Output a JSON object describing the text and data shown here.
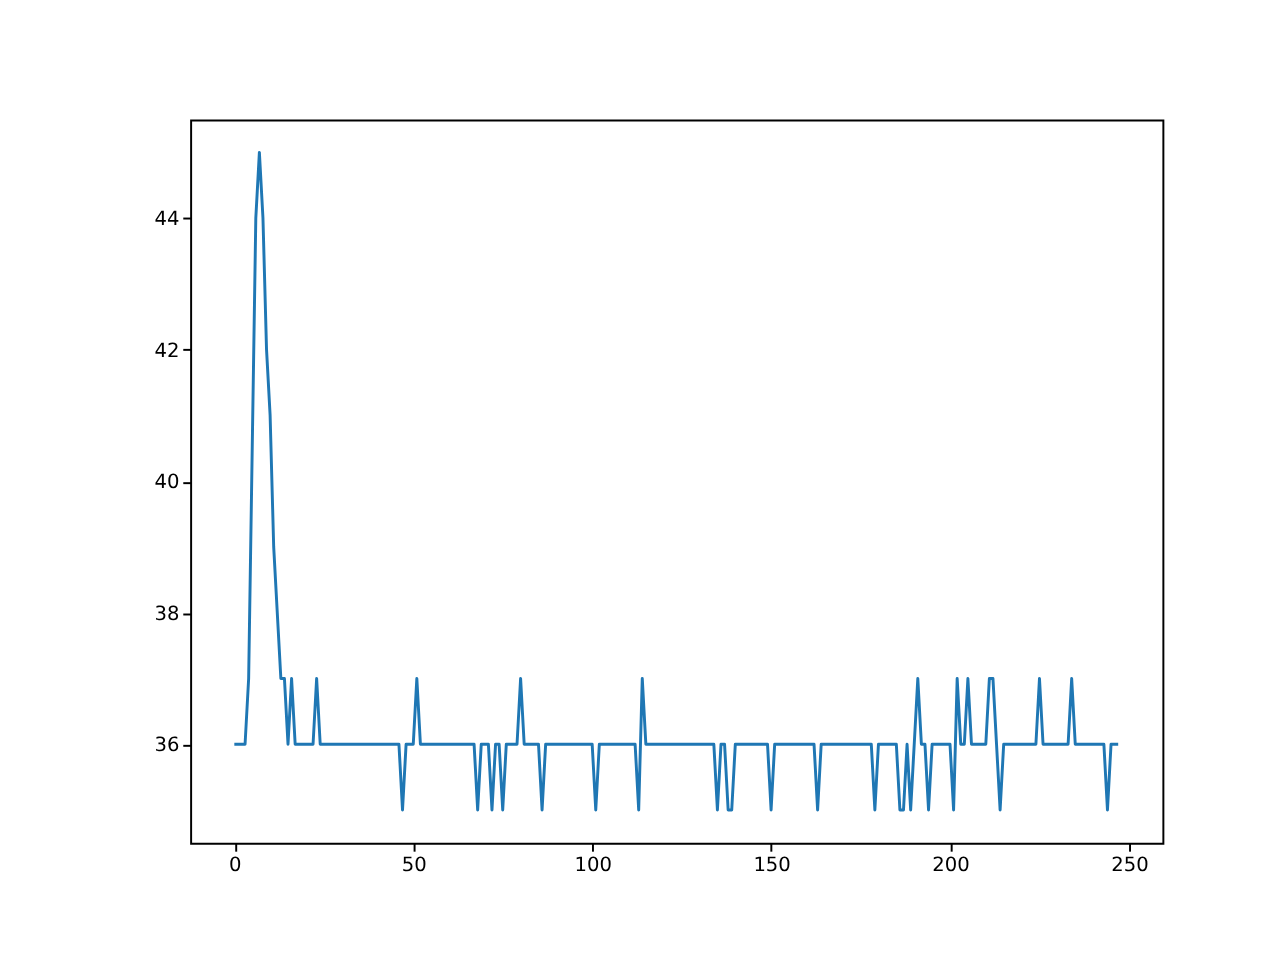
{
  "chart_data": {
    "type": "line",
    "x": [
      0,
      3,
      4,
      6,
      7,
      8,
      9,
      10,
      11,
      12,
      13,
      14,
      15,
      16,
      17,
      22,
      23,
      24,
      46,
      47,
      48,
      50,
      51,
      52,
      67,
      68,
      69,
      71,
      72,
      73,
      74,
      75,
      76,
      79,
      80,
      81,
      85,
      86,
      87,
      100,
      101,
      102,
      112,
      113,
      114,
      115,
      134,
      135,
      136,
      137,
      138,
      139,
      140,
      149,
      150,
      151,
      162,
      163,
      164,
      178,
      179,
      180,
      185,
      186,
      187,
      188,
      189,
      190,
      191,
      192,
      193,
      194,
      195,
      200,
      201,
      202,
      203,
      204,
      205,
      206,
      210,
      211,
      212,
      213,
      214,
      215,
      224,
      225,
      226,
      233,
      234,
      235,
      243,
      244,
      245,
      247
    ],
    "series": [
      {
        "color": "#1f77b4",
        "values": [
          36,
          36,
          37,
          44,
          45,
          44,
          42,
          41,
          39,
          38,
          37,
          37,
          36,
          37,
          36,
          36,
          37,
          36,
          36,
          35,
          36,
          36,
          37,
          36,
          36,
          35,
          36,
          36,
          35,
          36,
          36,
          35,
          36,
          36,
          37,
          36,
          36,
          35,
          36,
          36,
          35,
          36,
          36,
          35,
          37,
          36,
          36,
          35,
          36,
          36,
          35,
          35,
          36,
          36,
          35,
          36,
          36,
          35,
          36,
          36,
          35,
          36,
          36,
          35,
          35,
          36,
          35,
          36,
          37,
          36,
          36,
          35,
          36,
          36,
          35,
          37,
          36,
          36,
          37,
          36,
          36,
          37,
          37,
          36,
          35,
          36,
          36,
          37,
          36,
          36,
          37,
          36,
          36,
          35,
          36,
          36
        ]
      }
    ],
    "xlim": [
      -12.35,
      259.35
    ],
    "ylim": [
      34.5,
      45.5
    ],
    "xticks": [
      0,
      50,
      100,
      150,
      200,
      250
    ],
    "yticks": [
      36,
      38,
      40,
      42,
      44
    ],
    "grid": false,
    "legend": false,
    "marker": "none",
    "line_style": "solid"
  }
}
